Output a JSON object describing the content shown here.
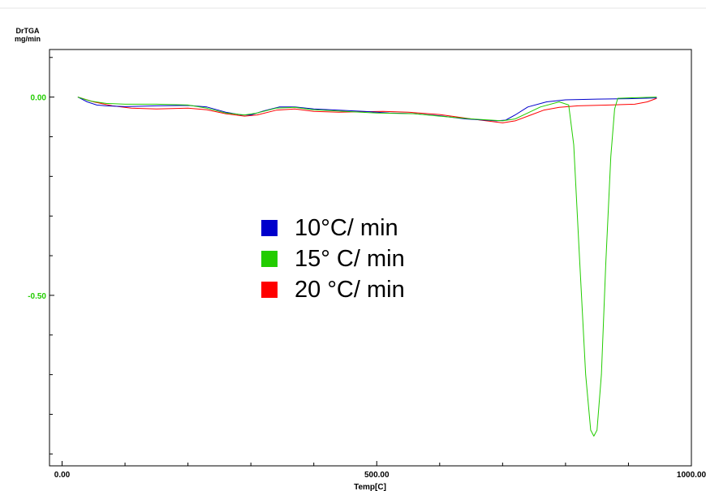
{
  "chart_data": {
    "type": "line",
    "ylabel_line1": "DrTGA",
    "ylabel_line2": "mg/min",
    "xlabel": "Temp[C]",
    "xlim": [
      -20,
      1000
    ],
    "ylim": [
      -0.93,
      0.12
    ],
    "x_ticks": [
      0,
      500,
      1000
    ],
    "x_tick_labels": [
      "0.00",
      "500.00",
      "1000.00"
    ],
    "y_ticks": [
      0.0,
      -0.5
    ],
    "y_tick_labels": [
      "0.00",
      "-0.50"
    ],
    "series": [
      {
        "name": "10°C/ min",
        "color": "#0000cc",
        "points": [
          [
            25,
            0.0
          ],
          [
            40,
            -0.012
          ],
          [
            55,
            -0.02
          ],
          [
            70,
            -0.022
          ],
          [
            100,
            -0.024
          ],
          [
            150,
            -0.022
          ],
          [
            200,
            -0.021
          ],
          [
            230,
            -0.025
          ],
          [
            260,
            -0.038
          ],
          [
            285,
            -0.045
          ],
          [
            300,
            -0.045
          ],
          [
            320,
            -0.035
          ],
          [
            345,
            -0.025
          ],
          [
            370,
            -0.025
          ],
          [
            400,
            -0.03
          ],
          [
            440,
            -0.033
          ],
          [
            480,
            -0.036
          ],
          [
            520,
            -0.04
          ],
          [
            560,
            -0.042
          ],
          [
            600,
            -0.047
          ],
          [
            640,
            -0.055
          ],
          [
            690,
            -0.06
          ],
          [
            705,
            -0.058
          ],
          [
            720,
            -0.045
          ],
          [
            740,
            -0.025
          ],
          [
            770,
            -0.012
          ],
          [
            800,
            -0.007
          ],
          [
            850,
            -0.005
          ],
          [
            900,
            -0.004
          ],
          [
            945,
            -0.002
          ]
        ]
      },
      {
        "name": "15° C/ min",
        "color": "#22cc00",
        "points": [
          [
            25,
            0.0
          ],
          [
            45,
            -0.01
          ],
          [
            70,
            -0.016
          ],
          [
            100,
            -0.018
          ],
          [
            150,
            -0.018
          ],
          [
            200,
            -0.02
          ],
          [
            230,
            -0.028
          ],
          [
            260,
            -0.04
          ],
          [
            290,
            -0.045
          ],
          [
            310,
            -0.04
          ],
          [
            340,
            -0.028
          ],
          [
            370,
            -0.026
          ],
          [
            400,
            -0.032
          ],
          [
            450,
            -0.036
          ],
          [
            500,
            -0.04
          ],
          [
            560,
            -0.042
          ],
          [
            600,
            -0.048
          ],
          [
            650,
            -0.055
          ],
          [
            700,
            -0.06
          ],
          [
            720,
            -0.055
          ],
          [
            740,
            -0.04
          ],
          [
            760,
            -0.025
          ],
          [
            790,
            -0.012
          ],
          [
            805,
            -0.02
          ],
          [
            813,
            -0.12
          ],
          [
            822,
            -0.4
          ],
          [
            832,
            -0.7
          ],
          [
            840,
            -0.84
          ],
          [
            845,
            -0.855
          ],
          [
            850,
            -0.84
          ],
          [
            857,
            -0.7
          ],
          [
            864,
            -0.42
          ],
          [
            872,
            -0.15
          ],
          [
            878,
            -0.03
          ],
          [
            883,
            -0.003
          ],
          [
            900,
            -0.002
          ],
          [
            945,
            0.0
          ]
        ]
      },
      {
        "name": "20 °C/ min",
        "color": "#ff0000",
        "points": [
          [
            25,
            0.0
          ],
          [
            50,
            -0.012
          ],
          [
            80,
            -0.022
          ],
          [
            110,
            -0.028
          ],
          [
            150,
            -0.03
          ],
          [
            200,
            -0.028
          ],
          [
            230,
            -0.032
          ],
          [
            260,
            -0.042
          ],
          [
            290,
            -0.048
          ],
          [
            310,
            -0.045
          ],
          [
            340,
            -0.033
          ],
          [
            370,
            -0.03
          ],
          [
            400,
            -0.036
          ],
          [
            440,
            -0.038
          ],
          [
            470,
            -0.037
          ],
          [
            510,
            -0.036
          ],
          [
            550,
            -0.038
          ],
          [
            600,
            -0.044
          ],
          [
            650,
            -0.055
          ],
          [
            700,
            -0.065
          ],
          [
            720,
            -0.06
          ],
          [
            745,
            -0.045
          ],
          [
            765,
            -0.033
          ],
          [
            790,
            -0.026
          ],
          [
            820,
            -0.022
          ],
          [
            870,
            -0.02
          ],
          [
            910,
            -0.018
          ],
          [
            930,
            -0.012
          ],
          [
            945,
            -0.003
          ]
        ]
      }
    ],
    "legend_position": "center",
    "grid": false
  }
}
